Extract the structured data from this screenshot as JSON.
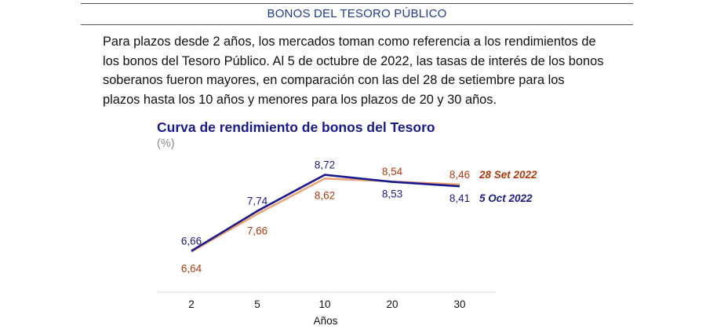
{
  "section": {
    "title": "BONOS DEL TESORO PÚBLICO"
  },
  "paragraph": [
    "Para plazos desde 2 años, los mercados toman como referencia a los rendimientos de",
    "los bonos del Tesoro Público. Al 5 de octubre de 2022, las tasas de interés de los bonos",
    "soberanos fueron mayores, en comparación con las del 28 de setiembre para los",
    "plazos hasta los 10 años y menores para los plazos de 20 y 30 años."
  ],
  "chart_data": {
    "type": "line",
    "title": "Curva de rendimiento de bonos del Tesoro",
    "unit": "(%)",
    "xlabel": "Años",
    "ylabel": "",
    "categories": [
      "2",
      "5",
      "10",
      "20",
      "30"
    ],
    "ylim": [
      5.8,
      9.2
    ],
    "grid": false,
    "legend_placement": "right of line ends",
    "series": [
      {
        "name": "28 Set 2022",
        "values": [
          6.64,
          7.66,
          8.62,
          8.54,
          8.46
        ],
        "labels": [
          "6,64",
          "7,66",
          "8,62",
          "8,54",
          "8,46"
        ],
        "color": "#f0a070",
        "label_color": "#b03a0e"
      },
      {
        "name": "5 Oct 2022",
        "values": [
          6.66,
          7.74,
          8.72,
          8.53,
          8.41
        ],
        "labels": [
          "6,66",
          "7,74",
          "8,72",
          "8,53",
          "8,41"
        ],
        "color": "#1a1a8c",
        "label_color": "#1a1a8c"
      }
    ]
  }
}
